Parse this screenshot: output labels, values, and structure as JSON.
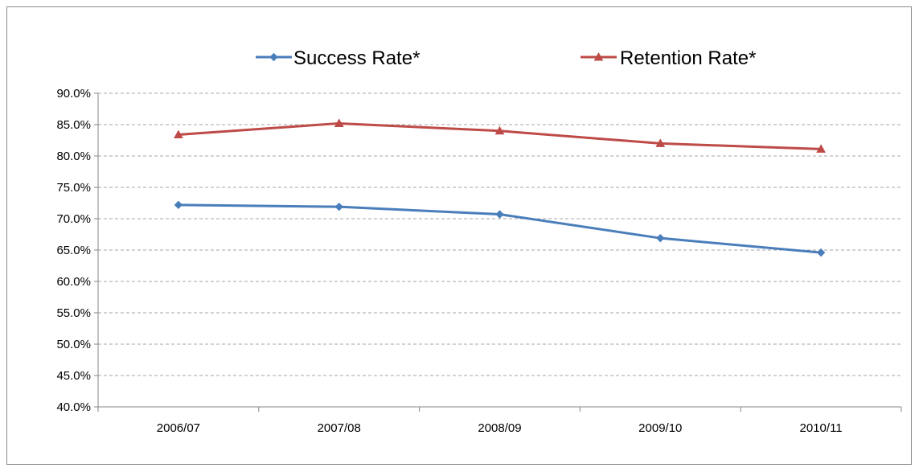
{
  "chart_data": {
    "type": "line",
    "categories": [
      "2006/07",
      "2007/08",
      "2008/09",
      "2009/10",
      "2010/11"
    ],
    "series": [
      {
        "name": "Success Rate*",
        "values": [
          72.2,
          71.9,
          70.7,
          66.9,
          64.6
        ],
        "color": "#4a7ebb",
        "marker": "diamond"
      },
      {
        "name": "Retention Rate*",
        "values": [
          83.4,
          85.2,
          84.0,
          82.0,
          81.1
        ],
        "color": "#be4b48",
        "marker": "triangle"
      }
    ],
    "ylim": [
      40,
      90
    ],
    "y_step": 5,
    "y_tick_format": "percent-1dp",
    "grid": true,
    "grid_style": "dashed",
    "legend_position": "top"
  }
}
